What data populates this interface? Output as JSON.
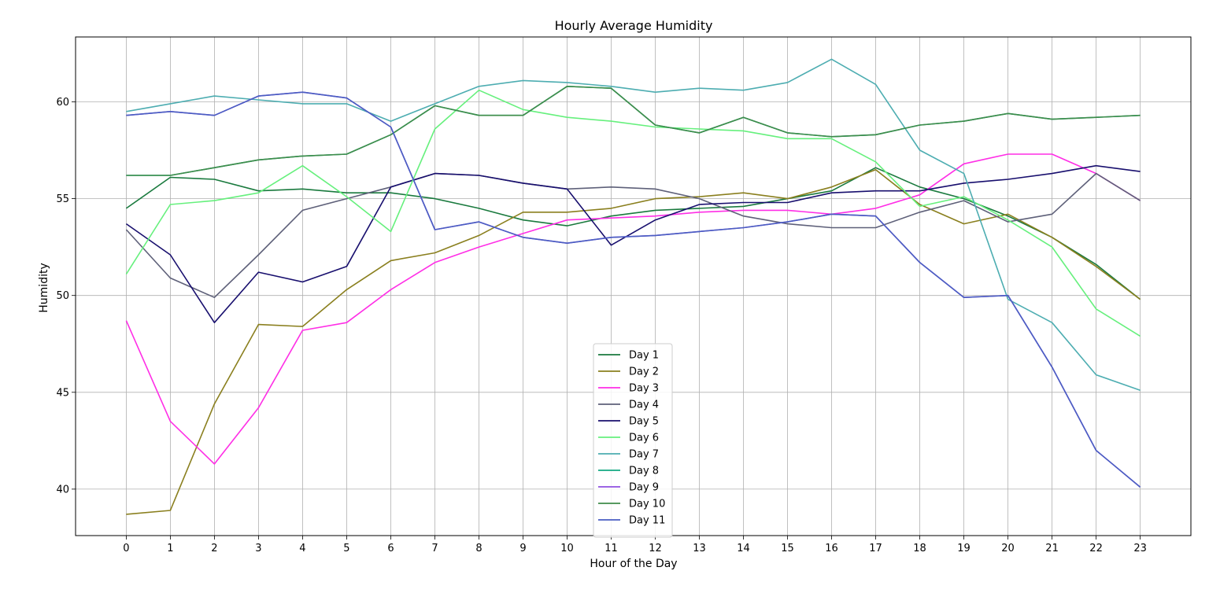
{
  "chart_data": {
    "type": "line",
    "title": "Hourly Average Humidity",
    "xlabel": "Hour of the Day",
    "ylabel": "Humidity",
    "xlim": [
      -1.15,
      24.15
    ],
    "ylim": [
      37.6,
      63.35
    ],
    "x": [
      0,
      1,
      2,
      3,
      4,
      5,
      6,
      7,
      8,
      9,
      10,
      11,
      12,
      13,
      14,
      15,
      16,
      17,
      18,
      19,
      20,
      21,
      22,
      23
    ],
    "x_ticks": [
      0,
      1,
      2,
      3,
      4,
      5,
      6,
      7,
      8,
      9,
      10,
      11,
      12,
      13,
      14,
      15,
      16,
      17,
      18,
      19,
      20,
      21,
      22,
      23
    ],
    "y_ticks": [
      40,
      45,
      50,
      55,
      60
    ],
    "grid": true,
    "legend_position": "bottom-center",
    "series": [
      {
        "name": "Day 1",
        "color": "#1a7a3e",
        "values": [
          54.5,
          56.1,
          56.0,
          55.4,
          55.5,
          55.3,
          55.3,
          55.0,
          54.5,
          53.9,
          53.6,
          54.1,
          54.4,
          54.5,
          54.6,
          55.0,
          55.4,
          56.6,
          55.6,
          55.0,
          54.1,
          53.0,
          51.6,
          49.8
        ]
      },
      {
        "name": "Day 2",
        "color": "#8a7f1e",
        "values": [
          38.7,
          38.9,
          44.4,
          48.5,
          48.4,
          50.3,
          51.8,
          52.2,
          53.1,
          54.3,
          54.3,
          54.5,
          55.0,
          55.1,
          55.3,
          55.0,
          55.6,
          56.5,
          54.7,
          53.7,
          54.2,
          53.0,
          51.5,
          49.8
        ]
      },
      {
        "name": "Day 3",
        "color": "#ff2ee6",
        "values": [
          48.7,
          43.5,
          41.3,
          44.2,
          48.2,
          48.6,
          50.3,
          51.7,
          52.5,
          53.2,
          53.9,
          54.0,
          54.1,
          54.3,
          54.4,
          54.4,
          54.2,
          54.5,
          55.2,
          56.8,
          57.3,
          57.3,
          56.3,
          54.9
        ]
      },
      {
        "name": "Day 4",
        "color": "#5e6079",
        "values": [
          53.4,
          50.9,
          49.9,
          52.1,
          54.4,
          55.0,
          55.6,
          56.3,
          56.2,
          55.8,
          55.5,
          55.6,
          55.5,
          55.0,
          54.1,
          53.7,
          53.5,
          53.5,
          54.3,
          54.9,
          53.8,
          54.2,
          56.3,
          54.9
        ]
      },
      {
        "name": "Day 5",
        "color": "#180f6e",
        "values": [
          53.7,
          52.1,
          48.6,
          51.2,
          50.7,
          51.5,
          55.6,
          56.3,
          56.2,
          55.8,
          55.5,
          52.6,
          53.9,
          54.7,
          54.8,
          54.8,
          55.3,
          55.4,
          55.4,
          55.8,
          56.0,
          56.3,
          56.7,
          56.4
        ]
      },
      {
        "name": "Day 6",
        "color": "#66f07d",
        "values": [
          51.1,
          54.7,
          54.9,
          55.3,
          56.7,
          55.1,
          53.3,
          58.6,
          60.6,
          59.6,
          59.2,
          59.0,
          58.7,
          58.6,
          58.5,
          58.1,
          58.1,
          56.9,
          54.6,
          55.1,
          53.9,
          52.5,
          49.3,
          47.9
        ]
      },
      {
        "name": "Day 7",
        "color": "#4dadb1",
        "values": [
          59.5,
          59.9,
          60.3,
          60.1,
          59.9,
          59.9,
          59.0,
          59.9,
          60.8,
          61.1,
          61.0,
          60.8,
          60.5,
          60.7,
          60.6,
          61.0,
          62.2,
          60.9,
          57.5,
          56.3,
          49.8,
          48.6,
          45.9,
          45.1
        ]
      },
      {
        "name": "Day 8",
        "color": "#13a882",
        "values": [
          56.2,
          56.2,
          56.6,
          57.0,
          57.2,
          57.3,
          58.3,
          59.8,
          59.3,
          59.3,
          60.8,
          60.7,
          58.8,
          58.4,
          59.2,
          58.4,
          58.2,
          58.3,
          58.8,
          59.0,
          59.4,
          59.1,
          59.2,
          59.3
        ]
      },
      {
        "name": "Day 9",
        "color": "#8e4fe0",
        "values": [
          59.3,
          59.5,
          59.3,
          60.3,
          60.5,
          60.2,
          58.7,
          53.4,
          53.8,
          53.0,
          52.7,
          53.0,
          53.1,
          53.3,
          53.5,
          53.8,
          54.2,
          54.1,
          51.7,
          49.9,
          50.0,
          46.3,
          42.0,
          40.1
        ]
      },
      {
        "name": "Day 10",
        "color": "#3f8c4a",
        "values": [
          56.2,
          56.2,
          56.6,
          57.0,
          57.2,
          57.3,
          58.3,
          59.8,
          59.3,
          59.3,
          60.8,
          60.7,
          58.8,
          58.4,
          59.2,
          58.4,
          58.2,
          58.3,
          58.8,
          59.0,
          59.4,
          59.1,
          59.2,
          59.3
        ]
      },
      {
        "name": "Day 11",
        "color": "#4a5ec2",
        "values": [
          59.3,
          59.5,
          59.3,
          60.3,
          60.5,
          60.2,
          58.7,
          53.4,
          53.8,
          53.0,
          52.7,
          53.0,
          53.1,
          53.3,
          53.5,
          53.8,
          54.2,
          54.1,
          51.7,
          49.9,
          50.0,
          46.3,
          42.0,
          40.1
        ]
      }
    ]
  }
}
